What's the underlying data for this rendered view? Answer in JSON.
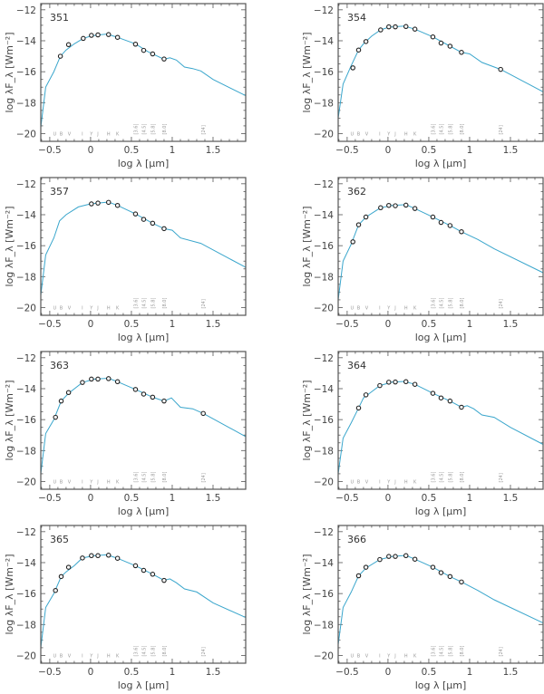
{
  "chart_data": [
    {
      "type": "line",
      "label": "351",
      "xlabel": "log λ [μm]",
      "ylabel": "log λF_λ [Wm⁻²]",
      "xlim": [
        -0.61,
        1.9
      ],
      "ylim": [
        -20.5,
        -11.6
      ],
      "xticks": [
        "-0.5",
        "0",
        "0.5",
        "1",
        "1.5"
      ],
      "yticks": [
        "-12",
        "-14",
        "-16",
        "-18",
        "-20"
      ],
      "points": [
        [
          -0.37,
          -15.0
        ],
        [
          -0.27,
          -14.25
        ],
        [
          -0.09,
          -13.85
        ],
        [
          0.01,
          -13.65
        ],
        [
          0.09,
          -13.62
        ],
        [
          0.22,
          -13.6
        ],
        [
          0.33,
          -13.78
        ],
        [
          0.55,
          -14.22
        ],
        [
          0.65,
          -14.62
        ],
        [
          0.76,
          -14.85
        ],
        [
          0.9,
          -15.18
        ]
      ],
      "model": [
        [
          -0.61,
          -19.6
        ],
        [
          -0.55,
          -17.0
        ],
        [
          -0.45,
          -16.0
        ],
        [
          -0.37,
          -15.0
        ],
        [
          -0.3,
          -14.6
        ],
        [
          -0.2,
          -14.2
        ],
        [
          -0.09,
          -13.85
        ],
        [
          0,
          -13.7
        ],
        [
          0.1,
          -13.62
        ],
        [
          0.2,
          -13.57
        ],
        [
          0.33,
          -13.78
        ],
        [
          0.55,
          -14.2
        ],
        [
          0.7,
          -14.7
        ],
        [
          0.9,
          -15.2
        ],
        [
          0.97,
          -15.1
        ],
        [
          1.05,
          -15.25
        ],
        [
          1.15,
          -15.7
        ],
        [
          1.25,
          -15.8
        ],
        [
          1.35,
          -15.95
        ],
        [
          1.5,
          -16.5
        ],
        [
          1.9,
          -17.55
        ]
      ]
    },
    {
      "type": "line",
      "label": "354",
      "xlabel": "log λ [μm]",
      "ylabel": "log λF_λ [Wm⁻²]",
      "xlim": [
        -0.61,
        1.9
      ],
      "ylim": [
        -20.5,
        -11.6
      ],
      "xticks": [
        "-0.5",
        "0",
        "0.5",
        "1",
        "1.5"
      ],
      "yticks": [
        "-12",
        "-14",
        "-16",
        "-18",
        "-20"
      ],
      "points": [
        [
          -0.43,
          -15.75
        ],
        [
          -0.36,
          -14.6
        ],
        [
          -0.27,
          -14.05
        ],
        [
          -0.09,
          -13.3
        ],
        [
          0.01,
          -13.1
        ],
        [
          0.09,
          -13.1
        ],
        [
          0.22,
          -13.08
        ],
        [
          0.33,
          -13.25
        ],
        [
          0.55,
          -13.75
        ],
        [
          0.65,
          -14.15
        ],
        [
          0.76,
          -14.35
        ],
        [
          0.9,
          -14.75
        ],
        [
          1.38,
          -15.85
        ]
      ],
      "model": [
        [
          -0.61,
          -19.0
        ],
        [
          -0.55,
          -16.8
        ],
        [
          -0.45,
          -15.6
        ],
        [
          -0.36,
          -14.6
        ],
        [
          -0.3,
          -14.2
        ],
        [
          -0.2,
          -13.7
        ],
        [
          -0.09,
          -13.3
        ],
        [
          0.01,
          -13.12
        ],
        [
          0.2,
          -13.05
        ],
        [
          0.33,
          -13.25
        ],
        [
          0.55,
          -13.75
        ],
        [
          0.76,
          -14.35
        ],
        [
          0.9,
          -14.75
        ],
        [
          1.0,
          -14.85
        ],
        [
          1.15,
          -15.4
        ],
        [
          1.38,
          -15.85
        ],
        [
          1.9,
          -17.3
        ]
      ]
    },
    {
      "type": "line",
      "label": "357",
      "xlabel": "log λ [μm]",
      "ylabel": "log λF_λ [Wm⁻²]",
      "xlim": [
        -0.61,
        1.9
      ],
      "ylim": [
        -20.5,
        -11.6
      ],
      "xticks": [
        "-0.5",
        "0",
        "0.5",
        "1",
        "1.5"
      ],
      "yticks": [
        "-12",
        "-14",
        "-16",
        "-18",
        "-20"
      ],
      "points": [
        [
          0.01,
          -13.3
        ],
        [
          0.09,
          -13.25
        ],
        [
          0.22,
          -13.2
        ],
        [
          0.33,
          -13.4
        ],
        [
          0.55,
          -13.95
        ],
        [
          0.65,
          -14.3
        ],
        [
          0.76,
          -14.55
        ],
        [
          0.9,
          -14.9
        ]
      ],
      "model": [
        [
          -0.61,
          -19.2
        ],
        [
          -0.55,
          -16.6
        ],
        [
          -0.45,
          -15.5
        ],
        [
          -0.38,
          -14.4
        ],
        [
          -0.3,
          -14.0
        ],
        [
          -0.15,
          -13.5
        ],
        [
          0,
          -13.3
        ],
        [
          0.22,
          -13.18
        ],
        [
          0.33,
          -13.4
        ],
        [
          0.55,
          -13.95
        ],
        [
          0.76,
          -14.55
        ],
        [
          0.9,
          -14.9
        ],
        [
          1.0,
          -15.0
        ],
        [
          1.1,
          -15.5
        ],
        [
          1.35,
          -15.85
        ],
        [
          1.9,
          -17.4
        ]
      ]
    },
    {
      "type": "line",
      "label": "362",
      "xlabel": "log λ [μm]",
      "ylabel": "log λF_λ [Wm⁻²]",
      "xlim": [
        -0.61,
        1.9
      ],
      "ylim": [
        -20.5,
        -11.6
      ],
      "xticks": [
        "-0.5",
        "0",
        "0.5",
        "1",
        "1.5"
      ],
      "yticks": [
        "-12",
        "-14",
        "-16",
        "-18",
        "-20"
      ],
      "points": [
        [
          -0.43,
          -15.75
        ],
        [
          -0.36,
          -14.65
        ],
        [
          -0.27,
          -14.15
        ],
        [
          -0.09,
          -13.55
        ],
        [
          0.01,
          -13.4
        ],
        [
          0.09,
          -13.42
        ],
        [
          0.22,
          -13.38
        ],
        [
          0.33,
          -13.6
        ],
        [
          0.55,
          -14.15
        ],
        [
          0.65,
          -14.5
        ],
        [
          0.76,
          -14.7
        ],
        [
          0.9,
          -15.1
        ]
      ],
      "model": [
        [
          -0.61,
          -19.5
        ],
        [
          -0.55,
          -17.0
        ],
        [
          -0.45,
          -15.9
        ],
        [
          -0.36,
          -14.65
        ],
        [
          -0.27,
          -14.15
        ],
        [
          -0.15,
          -13.75
        ],
        [
          -0.09,
          -13.55
        ],
        [
          0.05,
          -13.4
        ],
        [
          0.22,
          -13.35
        ],
        [
          0.33,
          -13.6
        ],
        [
          0.55,
          -14.15
        ],
        [
          0.76,
          -14.7
        ],
        [
          0.9,
          -15.1
        ],
        [
          1.1,
          -15.6
        ],
        [
          1.3,
          -16.2
        ],
        [
          1.9,
          -17.75
        ]
      ]
    },
    {
      "type": "line",
      "label": "363",
      "xlabel": "log λ [μm]",
      "ylabel": "log λF_λ [Wm⁻²]",
      "xlim": [
        -0.61,
        1.9
      ],
      "ylim": [
        -20.5,
        -11.6
      ],
      "xticks": [
        "-0.5",
        "0",
        "0.5",
        "1",
        "1.5"
      ],
      "yticks": [
        "-12",
        "-14",
        "-16",
        "-18",
        "-20"
      ],
      "points": [
        [
          -0.43,
          -15.85
        ],
        [
          -0.36,
          -14.8
        ],
        [
          -0.27,
          -14.25
        ],
        [
          -0.1,
          -13.6
        ],
        [
          0.01,
          -13.38
        ],
        [
          0.09,
          -13.38
        ],
        [
          0.22,
          -13.35
        ],
        [
          0.33,
          -13.55
        ],
        [
          0.55,
          -14.05
        ],
        [
          0.65,
          -14.35
        ],
        [
          0.76,
          -14.55
        ],
        [
          0.9,
          -14.8
        ],
        [
          1.38,
          -15.6
        ]
      ],
      "model": [
        [
          -0.61,
          -19.5
        ],
        [
          -0.55,
          -16.9
        ],
        [
          -0.45,
          -16.0
        ],
        [
          -0.36,
          -14.8
        ],
        [
          -0.27,
          -14.3
        ],
        [
          -0.1,
          -13.6
        ],
        [
          0.05,
          -13.38
        ],
        [
          0.22,
          -13.33
        ],
        [
          0.33,
          -13.55
        ],
        [
          0.55,
          -14.05
        ],
        [
          0.76,
          -14.55
        ],
        [
          0.9,
          -14.8
        ],
        [
          0.99,
          -14.6
        ],
        [
          1.1,
          -15.2
        ],
        [
          1.25,
          -15.3
        ],
        [
          1.38,
          -15.6
        ],
        [
          1.9,
          -17.1
        ]
      ]
    },
    {
      "type": "line",
      "label": "364",
      "xlabel": "log λ [μm]",
      "ylabel": "log λF_λ [Wm⁻²]",
      "xlim": [
        -0.61,
        1.9
      ],
      "ylim": [
        -20.5,
        -11.6
      ],
      "xticks": [
        "-0.5",
        "0",
        "0.5",
        "1",
        "1.5"
      ],
      "yticks": [
        "-12",
        "-14",
        "-16",
        "-18",
        "-20"
      ],
      "points": [
        [
          -0.36,
          -15.25
        ],
        [
          -0.27,
          -14.4
        ],
        [
          -0.1,
          -13.8
        ],
        [
          0.01,
          -13.58
        ],
        [
          0.09,
          -13.57
        ],
        [
          0.22,
          -13.55
        ],
        [
          0.33,
          -13.72
        ],
        [
          0.55,
          -14.3
        ],
        [
          0.65,
          -14.6
        ],
        [
          0.76,
          -14.8
        ],
        [
          0.9,
          -15.2
        ]
      ],
      "model": [
        [
          -0.61,
          -19.5
        ],
        [
          -0.55,
          -17.2
        ],
        [
          -0.45,
          -16.2
        ],
        [
          -0.36,
          -15.25
        ],
        [
          -0.3,
          -14.6
        ],
        [
          -0.2,
          -14.2
        ],
        [
          -0.1,
          -13.8
        ],
        [
          0.05,
          -13.58
        ],
        [
          0.2,
          -13.53
        ],
        [
          0.33,
          -13.72
        ],
        [
          0.55,
          -14.3
        ],
        [
          0.76,
          -14.8
        ],
        [
          0.9,
          -15.2
        ],
        [
          0.97,
          -15.1
        ],
        [
          1.05,
          -15.3
        ],
        [
          1.15,
          -15.7
        ],
        [
          1.3,
          -15.85
        ],
        [
          1.5,
          -16.5
        ],
        [
          1.9,
          -17.6
        ]
      ]
    },
    {
      "type": "line",
      "label": "365",
      "xlabel": "log λ [μm]",
      "ylabel": "log λF_λ [Wm⁻²]",
      "xlim": [
        -0.61,
        1.9
      ],
      "ylim": [
        -20.5,
        -11.6
      ],
      "xticks": [
        "-0.5",
        "0",
        "0.5",
        "1",
        "1.5"
      ],
      "yticks": [
        "-12",
        "-14",
        "-16",
        "-18",
        "-20"
      ],
      "points": [
        [
          -0.43,
          -15.8
        ],
        [
          -0.36,
          -14.9
        ],
        [
          -0.27,
          -14.3
        ],
        [
          -0.1,
          -13.7
        ],
        [
          0.01,
          -13.55
        ],
        [
          0.09,
          -13.55
        ],
        [
          0.22,
          -13.52
        ],
        [
          0.33,
          -13.72
        ],
        [
          0.55,
          -14.2
        ],
        [
          0.65,
          -14.5
        ],
        [
          0.76,
          -14.75
        ],
        [
          0.9,
          -15.15
        ]
      ],
      "model": [
        [
          -0.61,
          -19.5
        ],
        [
          -0.55,
          -16.9
        ],
        [
          -0.45,
          -16.0
        ],
        [
          -0.36,
          -14.9
        ],
        [
          -0.3,
          -14.6
        ],
        [
          -0.2,
          -14.2
        ],
        [
          -0.1,
          -13.7
        ],
        [
          0.05,
          -13.55
        ],
        [
          0.2,
          -13.5
        ],
        [
          0.33,
          -13.72
        ],
        [
          0.55,
          -14.2
        ],
        [
          0.76,
          -14.75
        ],
        [
          0.9,
          -15.15
        ],
        [
          0.97,
          -15.05
        ],
        [
          1.05,
          -15.3
        ],
        [
          1.15,
          -15.7
        ],
        [
          1.3,
          -15.9
        ],
        [
          1.5,
          -16.6
        ],
        [
          1.9,
          -17.55
        ]
      ]
    },
    {
      "type": "line",
      "label": "366",
      "xlabel": "log λ [μm]",
      "ylabel": "log λF_λ [Wm⁻²]",
      "xlim": [
        -0.61,
        1.9
      ],
      "ylim": [
        -20.5,
        -11.6
      ],
      "xticks": [
        "-0.5",
        "0",
        "0.5",
        "1",
        "1.5"
      ],
      "yticks": [
        "-12",
        "-14",
        "-16",
        "-18",
        "-20"
      ],
      "points": [
        [
          -0.36,
          -14.85
        ],
        [
          -0.27,
          -14.3
        ],
        [
          -0.1,
          -13.8
        ],
        [
          0.01,
          -13.6
        ],
        [
          0.09,
          -13.6
        ],
        [
          0.22,
          -13.55
        ],
        [
          0.33,
          -13.78
        ],
        [
          0.55,
          -14.3
        ],
        [
          0.65,
          -14.65
        ],
        [
          0.76,
          -14.9
        ],
        [
          0.9,
          -15.25
        ]
      ],
      "model": [
        [
          -0.61,
          -19.3
        ],
        [
          -0.55,
          -16.9
        ],
        [
          -0.45,
          -15.9
        ],
        [
          -0.36,
          -14.85
        ],
        [
          -0.27,
          -14.35
        ],
        [
          -0.1,
          -13.8
        ],
        [
          0.05,
          -13.6
        ],
        [
          0.22,
          -13.53
        ],
        [
          0.33,
          -13.78
        ],
        [
          0.55,
          -14.3
        ],
        [
          0.76,
          -14.9
        ],
        [
          0.9,
          -15.25
        ],
        [
          1.1,
          -15.8
        ],
        [
          1.3,
          -16.4
        ],
        [
          1.9,
          -17.9
        ]
      ]
    }
  ],
  "bands": [
    {
      "name": "U",
      "x": -0.44
    },
    {
      "name": "B",
      "x": -0.36
    },
    {
      "name": "V",
      "x": -0.26
    },
    {
      "name": "I",
      "x": -0.1
    },
    {
      "name": "Y",
      "x": 0.01
    },
    {
      "name": "J",
      "x": 0.09
    },
    {
      "name": "H",
      "x": 0.22
    },
    {
      "name": "K",
      "x": 0.33
    },
    {
      "name": "[3.6]",
      "x": 0.55
    },
    {
      "name": "[4.5]",
      "x": 0.65
    },
    {
      "name": "[5.8]",
      "x": 0.76
    },
    {
      "name": "[8.0]",
      "x": 0.9
    },
    {
      "name": "[24]",
      "x": 1.38
    }
  ],
  "colors": {
    "model": "#3aa6cc",
    "points": "#222222",
    "bands": "#999999"
  }
}
